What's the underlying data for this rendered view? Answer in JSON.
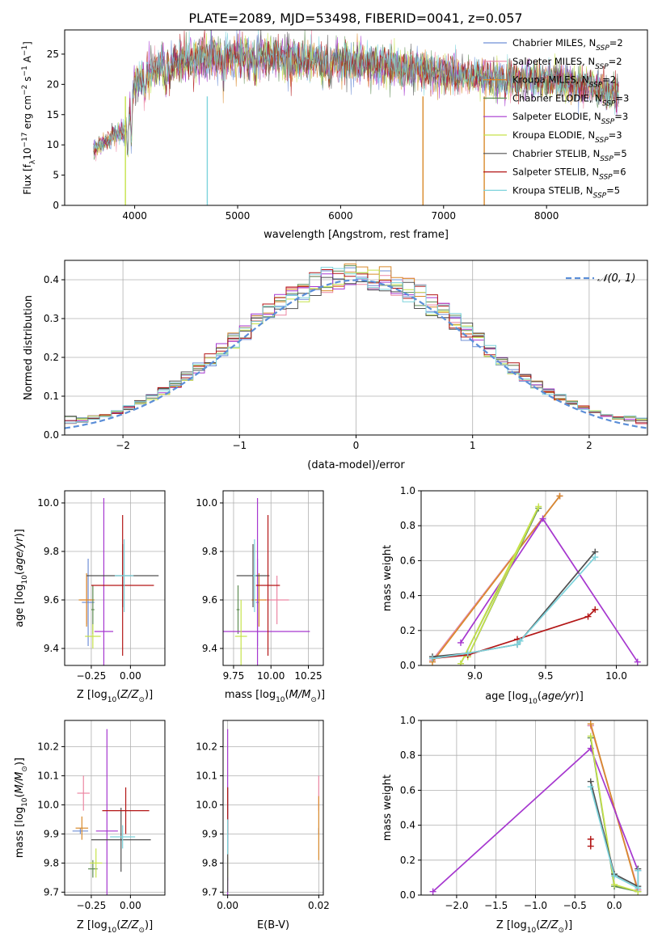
{
  "title": "PLATE=2089, MJD=53498, FIBERID=0041, z=0.057",
  "colors": {
    "Chabrier MILES": "#6f8fd6",
    "Salpeter MILES": "#ec87a3",
    "Kroupa MILES": "#d98a2b",
    "Chabrier ELODIE": "#5e8c53",
    "Salpeter ELODIE": "#a637cf",
    "Kroupa ELODIE": "#c6e24b",
    "Chabrier STELIB": "#505050",
    "Salpeter STELIB": "#b31616",
    "Kroupa STELIB": "#7dd3dc",
    "norm_curve": "#5b8ed8",
    "grid": "#b0b0b0"
  },
  "chart_data": [
    {
      "id": "spectrum",
      "type": "line",
      "xlabel": "wavelength [Angstrom, rest frame]",
      "ylabel": "Flux [f_λ10^−17 erg cm^−2 s^−1 A^−1]",
      "xlim": [
        3320,
        8980
      ],
      "ylim": [
        0,
        29
      ],
      "xticks": [
        4000,
        5000,
        6000,
        7000,
        8000
      ],
      "yticks": [
        0,
        5,
        10,
        15,
        20,
        25
      ],
      "grid": false,
      "legend_placement": "top-right",
      "legend": [
        "Chabrier MILES, N_SSP=2",
        "Salpeter MILES, N_SSP=2",
        "Kroupa MILES, N_SSP=2",
        "Chabrier ELODIE, N_SSP=3",
        "Salpeter ELODIE, N_SSP=3",
        "Kroupa ELODIE, N_SSP=3",
        "Chabrier STELIB, N_SSP=5",
        "Salpeter STELIB, N_SSP=6",
        "Kroupa STELIB, N_SSP=5"
      ],
      "continuum": [
        [
          3600,
          9
        ],
        [
          3700,
          10
        ],
        [
          3800,
          11.5
        ],
        [
          3900,
          12
        ],
        [
          3950,
          15
        ],
        [
          4000,
          20
        ],
        [
          4100,
          21
        ],
        [
          4200,
          22.5
        ],
        [
          4400,
          23.5
        ],
        [
          4600,
          24
        ],
        [
          4800,
          24.5
        ],
        [
          5000,
          24.5
        ],
        [
          5200,
          24.5
        ],
        [
          5500,
          24
        ],
        [
          5800,
          23.8
        ],
        [
          6000,
          23.5
        ],
        [
          6300,
          23
        ],
        [
          6600,
          22.5
        ],
        [
          6900,
          21.8
        ],
        [
          7200,
          21.2
        ],
        [
          7500,
          20.8
        ],
        [
          8000,
          20.5
        ],
        [
          8400,
          19.5
        ],
        [
          8700,
          18
        ]
      ],
      "dips": [
        [
          3933,
          0.55
        ],
        [
          3968,
          0.6
        ],
        [
          4101,
          0.85
        ],
        [
          4304,
          0.85
        ],
        [
          4340,
          0.85
        ],
        [
          4861,
          0.85
        ],
        [
          5175,
          0.85
        ],
        [
          5890,
          0.85
        ],
        [
          7600,
          0.88
        ]
      ]
    },
    {
      "id": "residuals",
      "type": "histogram",
      "xlabel": "(data-model)/error",
      "ylabel": "Normed distribution",
      "xlim": [
        -2.5,
        2.5
      ],
      "ylim": [
        0,
        0.45
      ],
      "xticks": [
        -2,
        -1,
        0,
        1,
        2
      ],
      "yticks": [
        0.0,
        0.1,
        0.2,
        0.3,
        0.4
      ],
      "grid": true,
      "legend_placement": "top-right",
      "legend": [
        "𝒩(0, 1)"
      ],
      "bin_width": 0.1
    },
    {
      "id": "age_vs_Z",
      "type": "scatter",
      "xlabel": "Z [log10(Z/Z⊙)]",
      "ylabel": "age [log10(age/yr)]",
      "xlim": [
        -0.42,
        0.22
      ],
      "ylim": [
        9.33,
        10.05
      ],
      "xticks": [
        -0.25,
        0.0
      ],
      "yticks": [
        9.4,
        9.6,
        9.8,
        10.0
      ],
      "grid": true,
      "points": [
        {
          "series": "Chabrier MILES",
          "x": -0.27,
          "y": 9.59,
          "xerr": 0.04,
          "yerr": 0.18
        },
        {
          "series": "Salpeter MILES",
          "x": -0.28,
          "y": 9.6,
          "xerr": 0.04,
          "yerr": 0.1
        },
        {
          "series": "Kroupa MILES",
          "x": -0.28,
          "y": 9.6,
          "xerr": 0.05,
          "yerr": 0.11
        },
        {
          "series": "Chabrier ELODIE",
          "x": -0.24,
          "y": 9.56,
          "xerr": 0.01,
          "yerr": 0.1
        },
        {
          "series": "Salpeter ELODIE",
          "x": -0.17,
          "y": 9.47,
          "xerr": 0.06,
          "yerr": 0.55
        },
        {
          "series": "Kroupa ELODIE",
          "x": -0.24,
          "y": 9.45,
          "xerr": 0.05,
          "yerr": 0.05
        },
        {
          "series": "Chabrier STELIB",
          "x": -0.05,
          "y": 9.7,
          "xerr": 0.23,
          "yerr": 0.13
        },
        {
          "series": "Salpeter STELIB",
          "x": -0.05,
          "y": 9.66,
          "xerr": 0.2,
          "yerr": 0.29
        },
        {
          "series": "Kroupa STELIB",
          "x": -0.04,
          "y": 9.7,
          "xerr": 0.06,
          "yerr": 0.15
        }
      ]
    },
    {
      "id": "age_vs_mass",
      "type": "scatter",
      "xlabel": "mass [log10(M/M⊙)]",
      "ylabel": "",
      "xlim": [
        9.68,
        10.35
      ],
      "ylim": [
        9.33,
        10.05
      ],
      "xticks": [
        9.75,
        10.0,
        10.25
      ],
      "yticks": [
        9.4,
        9.6,
        9.8,
        10.0
      ],
      "grid": true,
      "points": [
        {
          "series": "Chabrier MILES",
          "x": 9.91,
          "y": 9.59,
          "xerr": 0.01,
          "yerr": 0.18
        },
        {
          "series": "Salpeter MILES",
          "x": 10.04,
          "y": 9.6,
          "xerr": 0.08,
          "yerr": 0.1
        },
        {
          "series": "Kroupa MILES",
          "x": 9.92,
          "y": 9.6,
          "xerr": 0.05,
          "yerr": 0.11
        },
        {
          "series": "Chabrier ELODIE",
          "x": 9.78,
          "y": 9.56,
          "xerr": 0.01,
          "yerr": 0.1
        },
        {
          "series": "Salpeter ELODIE",
          "x": 9.91,
          "y": 9.47,
          "xerr": 0.35,
          "yerr": 0.55
        },
        {
          "series": "Kroupa ELODIE",
          "x": 9.8,
          "y": 9.45,
          "xerr": 0.04,
          "yerr": 0.15
        },
        {
          "series": "Chabrier STELIB",
          "x": 9.88,
          "y": 9.7,
          "xerr": 0.11,
          "yerr": 0.13
        },
        {
          "series": "Salpeter STELIB",
          "x": 9.98,
          "y": 9.66,
          "xerr": 0.08,
          "yerr": 0.29
        },
        {
          "series": "Kroupa STELIB",
          "x": 9.89,
          "y": 9.7,
          "xerr": 0.01,
          "yerr": 0.15
        }
      ]
    },
    {
      "id": "weight_vs_age",
      "type": "line",
      "xlabel": "age [log10(age/yr)]",
      "ylabel": "mass weight",
      "xlim": [
        8.62,
        10.22
      ],
      "ylim": [
        0,
        1.0
      ],
      "xticks": [
        9.0,
        9.5,
        10.0
      ],
      "yticks": [
        0.0,
        0.2,
        0.4,
        0.6,
        0.8,
        1.0
      ],
      "grid": true,
      "series": [
        {
          "name": "Chabrier MILES",
          "x": [
            8.7,
            9.6
          ],
          "y": [
            0.03,
            0.97
          ]
        },
        {
          "name": "Salpeter MILES",
          "x": [
            8.7,
            9.6
          ],
          "y": [
            0.03,
            0.97
          ]
        },
        {
          "name": "Kroupa MILES",
          "x": [
            8.7,
            9.6
          ],
          "y": [
            0.02,
            0.97
          ]
        },
        {
          "name": "Chabrier ELODIE",
          "x": [
            8.9,
            9.45,
            8.95
          ],
          "y": [
            0.01,
            0.9,
            0.05
          ]
        },
        {
          "name": "Salpeter ELODIE",
          "x": [
            8.9,
            9.48,
            10.15
          ],
          "y": [
            0.13,
            0.84,
            0.02
          ]
        },
        {
          "name": "Kroupa ELODIE",
          "x": [
            8.9,
            9.45,
            8.95
          ],
          "y": [
            0.01,
            0.91,
            0.05
          ]
        },
        {
          "name": "Chabrier STELIB",
          "x": [
            8.7,
            8.95,
            9.3,
            9.32,
            9.85
          ],
          "y": [
            0.05,
            0.07,
            0.12,
            0.14,
            0.65
          ]
        },
        {
          "name": "Salpeter STELIB",
          "x": [
            8.7,
            8.95,
            9.3,
            9.8,
            9.85
          ],
          "y": [
            0.04,
            0.06,
            0.15,
            0.28,
            0.32
          ]
        },
        {
          "name": "Kroupa STELIB",
          "x": [
            8.7,
            8.95,
            9.3,
            9.32,
            9.85
          ],
          "y": [
            0.04,
            0.07,
            0.12,
            0.14,
            0.62
          ]
        }
      ]
    },
    {
      "id": "mass_vs_Z",
      "type": "scatter",
      "xlabel": "Z [log10(Z/Z⊙)]",
      "ylabel": "mass [log10(M/M⊙)]",
      "xlim": [
        -0.42,
        0.22
      ],
      "ylim": [
        9.69,
        10.29
      ],
      "xticks": [
        -0.25,
        0.0
      ],
      "yticks": [
        9.7,
        9.8,
        9.9,
        10.0,
        10.1,
        10.2
      ],
      "grid": true,
      "points": [
        {
          "series": "Chabrier MILES",
          "x": -0.32,
          "y": 9.91,
          "xerr": 0.05,
          "yerr": 0.01
        },
        {
          "series": "Salpeter MILES",
          "x": -0.3,
          "y": 10.04,
          "xerr": 0.04,
          "yerr": 0.06
        },
        {
          "series": "Kroupa MILES",
          "x": -0.31,
          "y": 9.92,
          "xerr": 0.04,
          "yerr": 0.04
        },
        {
          "series": "Chabrier ELODIE",
          "x": -0.24,
          "y": 9.78,
          "xerr": 0.03,
          "yerr": 0.03
        },
        {
          "series": "Salpeter ELODIE",
          "x": -0.15,
          "y": 9.91,
          "xerr": 0.07,
          "yerr": 0.35
        },
        {
          "series": "Kroupa ELODIE",
          "x": -0.22,
          "y": 9.8,
          "xerr": 0.04,
          "yerr": 0.05
        },
        {
          "series": "Chabrier STELIB",
          "x": -0.06,
          "y": 9.88,
          "xerr": 0.19,
          "yerr": 0.11
        },
        {
          "series": "Salpeter STELIB",
          "x": -0.03,
          "y": 9.98,
          "xerr": 0.15,
          "yerr": 0.08
        },
        {
          "series": "Kroupa STELIB",
          "x": -0.05,
          "y": 9.89,
          "xerr": 0.08,
          "yerr": 0.04
        }
      ]
    },
    {
      "id": "mass_vs_ebv",
      "type": "scatter",
      "xlabel": "E(B-V)",
      "ylabel": "",
      "xlim": [
        -0.001,
        0.021
      ],
      "ylim": [
        9.69,
        10.29
      ],
      "xticks": [
        0.0,
        0.02
      ],
      "yticks": [
        9.7,
        9.8,
        9.9,
        10.0,
        10.1,
        10.2
      ],
      "grid": true,
      "points": [
        {
          "series": "Chabrier MILES",
          "x": 0.02,
          "y": 9.91,
          "xerr": 0,
          "yerr": 0.01
        },
        {
          "series": "Salpeter MILES",
          "x": 0.02,
          "y": 10.04,
          "xerr": 0,
          "yerr": 0.06
        },
        {
          "series": "Kroupa MILES",
          "x": 0.02,
          "y": 9.92,
          "xerr": 0,
          "yerr": 0.11
        },
        {
          "series": "Chabrier ELODIE",
          "x": 0.0,
          "y": 9.78,
          "xerr": 0,
          "yerr": 0.04
        },
        {
          "series": "Salpeter ELODIE",
          "x": 0.0,
          "y": 9.91,
          "xerr": 0,
          "yerr": 0.35
        },
        {
          "series": "Kroupa ELODIE",
          "x": 0.0,
          "y": 9.8,
          "xerr": 0,
          "yerr": 0.05
        },
        {
          "series": "Chabrier STELIB",
          "x": 0.0,
          "y": 9.88,
          "xerr": 0,
          "yerr": 0.18
        },
        {
          "series": "Salpeter STELIB",
          "x": 0.0,
          "y": 9.98,
          "xerr": 0,
          "yerr": 0.08
        },
        {
          "series": "Kroupa STELIB",
          "x": 0.0,
          "y": 9.89,
          "xerr": 0,
          "yerr": 0.06
        }
      ]
    },
    {
      "id": "weight_vs_Z",
      "type": "line",
      "xlabel": "Z [log10(Z/Z⊙)]",
      "ylabel": "mass weight",
      "xlim": [
        -2.45,
        0.42
      ],
      "ylim": [
        0,
        1.0
      ],
      "xticks": [
        -2.0,
        -1.5,
        -1.0,
        -0.5,
        0.0
      ],
      "yticks": [
        0.0,
        0.2,
        0.4,
        0.6,
        0.8,
        1.0
      ],
      "grid": true,
      "series": [
        {
          "name": "Chabrier MILES",
          "x": [
            -0.3,
            0.3
          ],
          "y": [
            0.97,
            0.03
          ]
        },
        {
          "name": "Salpeter MILES",
          "x": [
            -0.3,
            0.3
          ],
          "y": [
            0.97,
            0.03
          ]
        },
        {
          "name": "Kroupa MILES",
          "x": [
            -0.3,
            0.3
          ],
          "y": [
            0.98,
            0.02
          ]
        },
        {
          "name": "Chabrier ELODIE",
          "x": [
            -0.3,
            0.0,
            0.3
          ],
          "y": [
            0.9,
            0.05,
            0.02
          ]
        },
        {
          "name": "Salpeter ELODIE",
          "x": [
            -2.3,
            -0.3,
            0.3
          ],
          "y": [
            0.02,
            0.84,
            0.14
          ]
        },
        {
          "name": "Kroupa ELODIE",
          "x": [
            -0.3,
            0.0,
            0.3
          ],
          "y": [
            0.91,
            0.06,
            0.02
          ]
        },
        {
          "name": "Chabrier STELIB",
          "x": [
            -0.3,
            0.0,
            0.3,
            0.3
          ],
          "y": [
            0.65,
            0.12,
            0.05,
            0.15
          ]
        },
        {
          "name": "Salpeter STELIB",
          "x": [
            -0.3,
            -0.3
          ],
          "y": [
            0.32,
            0.28
          ]
        },
        {
          "name": "Kroupa STELIB",
          "x": [
            -0.3,
            0.0,
            0.3,
            0.3
          ],
          "y": [
            0.62,
            0.11,
            0.04,
            0.14
          ]
        }
      ]
    }
  ]
}
